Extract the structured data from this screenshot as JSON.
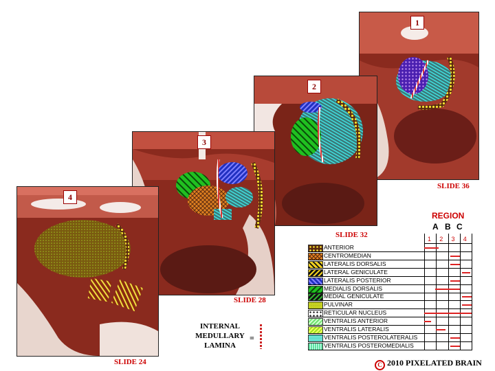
{
  "slides": [
    {
      "number": "1",
      "caption": "SLIDE 36"
    },
    {
      "number": "2",
      "caption": "SLIDE 32"
    },
    {
      "number": "3",
      "caption": "SLIDE 28"
    },
    {
      "number": "4",
      "caption": "SLIDE 24"
    }
  ],
  "lamina": {
    "line1": "INTERNAL",
    "line2": "MEDULLARY",
    "line3": "LAMINA",
    "equals": "="
  },
  "region": {
    "title": "REGION",
    "letters": [
      "A",
      "B",
      "C"
    ],
    "numbers": [
      "1",
      "2",
      "3",
      "4"
    ]
  },
  "legend": [
    {
      "name": "ANTERIOR",
      "swatch": "dots-yellow",
      "ranges": [
        [
          0.0,
          1.2
        ]
      ]
    },
    {
      "name": "CENTROMEDIAN",
      "swatch": "crosshatch-orange",
      "ranges": [
        [
          2.2,
          3.0
        ]
      ]
    },
    {
      "name": "LATERALIS DORSALIS",
      "swatch": "stripe-yellow-black",
      "ranges": [
        [
          2.2,
          3.0
        ]
      ]
    },
    {
      "name": "LATERAL GENICULATE",
      "swatch": "stripe-black-yellow",
      "ranges": [
        [
          3.2,
          3.9
        ]
      ]
    },
    {
      "name": "LATERALIS POSTERIOR",
      "swatch": "stripe-blue",
      "ranges": [
        [
          2.2,
          3.0
        ]
      ]
    },
    {
      "name": "MEDIALIS DORSALIS",
      "swatch": "stripe-green",
      "ranges": [
        [
          0.9,
          3.0
        ]
      ]
    },
    {
      "name": "MEDIAL GENICULATE",
      "swatch": "stripe-black-green",
      "ranges": [
        [
          3.2,
          4.0
        ]
      ]
    },
    {
      "name": "PULVINAR",
      "swatch": "dots-olive",
      "ranges": [
        [
          3.2,
          4.0
        ]
      ]
    },
    {
      "name": "RETICULAR NUCLEUS",
      "swatch": "dots-cream",
      "ranges": [
        [
          0.0,
          4.0
        ]
      ]
    },
    {
      "name": "VENTRALIS ANTERIOR",
      "swatch": "stripe-lightgreen",
      "ranges": [
        [
          0.0,
          0.6
        ]
      ]
    },
    {
      "name": "VENTRALIS LATERALIS",
      "swatch": "stripe-lime",
      "ranges": [
        [
          1.0,
          1.8
        ]
      ]
    },
    {
      "name": "VENTRALIS POSTEROLATERALIS",
      "swatch": "stripe-aqua",
      "ranges": [
        [
          2.2,
          3.0
        ]
      ]
    },
    {
      "name": "VENTRALIS POSTEROMEDIALIS",
      "swatch": "stripe-mint",
      "ranges": [
        [
          2.2,
          3.0
        ]
      ]
    }
  ],
  "copyright": {
    "symbol": "C",
    "text": "2010  PIXELATED BRAIN"
  },
  "colors": {
    "caption": "#cc0000",
    "tissue": "#b03a2e",
    "tissue_dark": "#5a1a14",
    "bar": "#dd2222"
  }
}
